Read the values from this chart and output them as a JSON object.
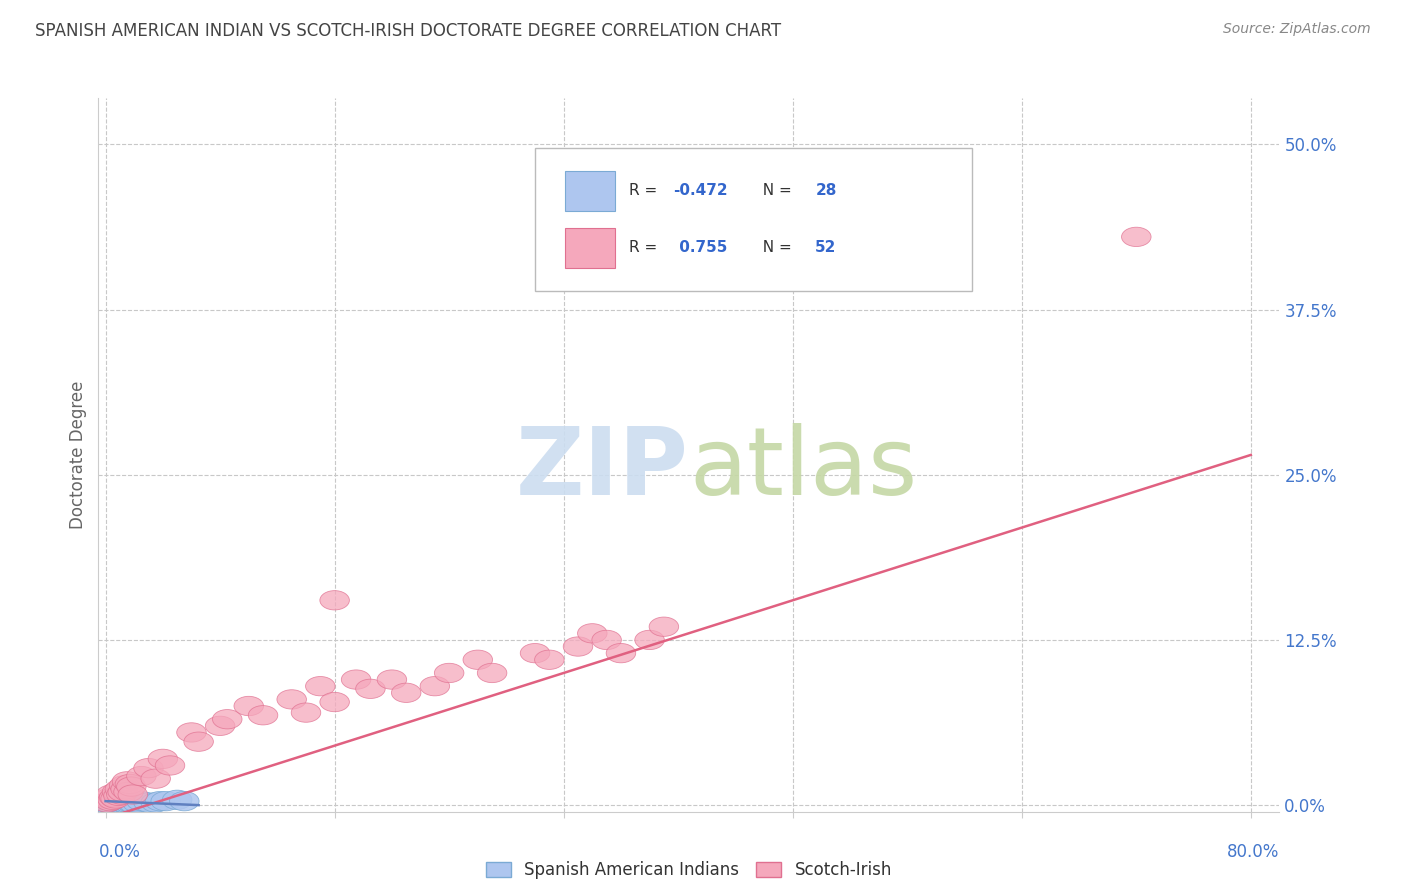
{
  "title": "SPANISH AMERICAN INDIAN VS SCOTCH-IRISH DOCTORATE DEGREE CORRELATION CHART",
  "source": "Source: ZipAtlas.com",
  "ylabel": "Doctorate Degree",
  "ytick_labels": [
    "0.0%",
    "12.5%",
    "25.0%",
    "37.5%",
    "50.0%"
  ],
  "ytick_values": [
    0.0,
    0.125,
    0.25,
    0.375,
    0.5
  ],
  "xtick_values": [
    0.0,
    0.16,
    0.32,
    0.48,
    0.64,
    0.8
  ],
  "xlim": [
    -0.005,
    0.82
  ],
  "ylim": [
    -0.005,
    0.535
  ],
  "legend_label1": "Spanish American Indians",
  "legend_label2": "Scotch-Irish",
  "blue_color": "#aec6ef",
  "blue_edge": "#7baad4",
  "pink_color": "#f5a8bc",
  "pink_edge": "#e07090",
  "background_color": "#ffffff",
  "grid_color": "#c8c8c8",
  "title_color": "#444444",
  "axis_label_color": "#4477cc",
  "blue_R": "-0.472",
  "blue_N": "28",
  "pink_R": "0.755",
  "pink_N": "52",
  "blue_scatter": [
    [
      0.001,
      0.001
    ],
    [
      0.002,
      0.002
    ],
    [
      0.003,
      0.001
    ],
    [
      0.004,
      0.001
    ],
    [
      0.005,
      0.001
    ],
    [
      0.006,
      0.002
    ],
    [
      0.007,
      0.001
    ],
    [
      0.008,
      0.002
    ],
    [
      0.009,
      0.001
    ],
    [
      0.01,
      0.002
    ],
    [
      0.011,
      0.001
    ],
    [
      0.012,
      0.001
    ],
    [
      0.013,
      0.002
    ],
    [
      0.014,
      0.001
    ],
    [
      0.015,
      0.001
    ],
    [
      0.016,
      0.002
    ],
    [
      0.017,
      0.001
    ],
    [
      0.018,
      0.002
    ],
    [
      0.019,
      0.001
    ],
    [
      0.02,
      0.001
    ],
    [
      0.022,
      0.002
    ],
    [
      0.025,
      0.003
    ],
    [
      0.03,
      0.002
    ],
    [
      0.035,
      0.002
    ],
    [
      0.038,
      0.003
    ],
    [
      0.042,
      0.003
    ],
    [
      0.05,
      0.004
    ],
    [
      0.055,
      0.003
    ]
  ],
  "pink_scatter": [
    [
      0.001,
      0.002
    ],
    [
      0.002,
      0.005
    ],
    [
      0.003,
      0.003
    ],
    [
      0.004,
      0.008
    ],
    [
      0.005,
      0.004
    ],
    [
      0.006,
      0.006
    ],
    [
      0.007,
      0.005
    ],
    [
      0.008,
      0.01
    ],
    [
      0.009,
      0.007
    ],
    [
      0.01,
      0.012
    ],
    [
      0.011,
      0.008
    ],
    [
      0.012,
      0.01
    ],
    [
      0.013,
      0.015
    ],
    [
      0.014,
      0.012
    ],
    [
      0.015,
      0.018
    ],
    [
      0.016,
      0.01
    ],
    [
      0.017,
      0.016
    ],
    [
      0.018,
      0.014
    ],
    [
      0.019,
      0.008
    ],
    [
      0.025,
      0.022
    ],
    [
      0.03,
      0.028
    ],
    [
      0.035,
      0.02
    ],
    [
      0.04,
      0.035
    ],
    [
      0.045,
      0.03
    ],
    [
      0.06,
      0.055
    ],
    [
      0.065,
      0.048
    ],
    [
      0.08,
      0.06
    ],
    [
      0.085,
      0.065
    ],
    [
      0.1,
      0.075
    ],
    [
      0.11,
      0.068
    ],
    [
      0.13,
      0.08
    ],
    [
      0.14,
      0.07
    ],
    [
      0.15,
      0.09
    ],
    [
      0.16,
      0.078
    ],
    [
      0.175,
      0.095
    ],
    [
      0.185,
      0.088
    ],
    [
      0.2,
      0.095
    ],
    [
      0.21,
      0.085
    ],
    [
      0.23,
      0.09
    ],
    [
      0.24,
      0.1
    ],
    [
      0.26,
      0.11
    ],
    [
      0.27,
      0.1
    ],
    [
      0.3,
      0.115
    ],
    [
      0.31,
      0.11
    ],
    [
      0.33,
      0.12
    ],
    [
      0.34,
      0.13
    ],
    [
      0.35,
      0.125
    ],
    [
      0.36,
      0.115
    ],
    [
      0.38,
      0.125
    ],
    [
      0.39,
      0.135
    ],
    [
      0.16,
      0.155
    ],
    [
      0.72,
      0.43
    ]
  ],
  "pink_line_x": [
    0.0,
    0.8
  ],
  "pink_line_y": [
    -0.01,
    0.265
  ],
  "blue_line_x": [
    0.0,
    0.065
  ],
  "blue_line_y": [
    0.003,
    0.0
  ]
}
